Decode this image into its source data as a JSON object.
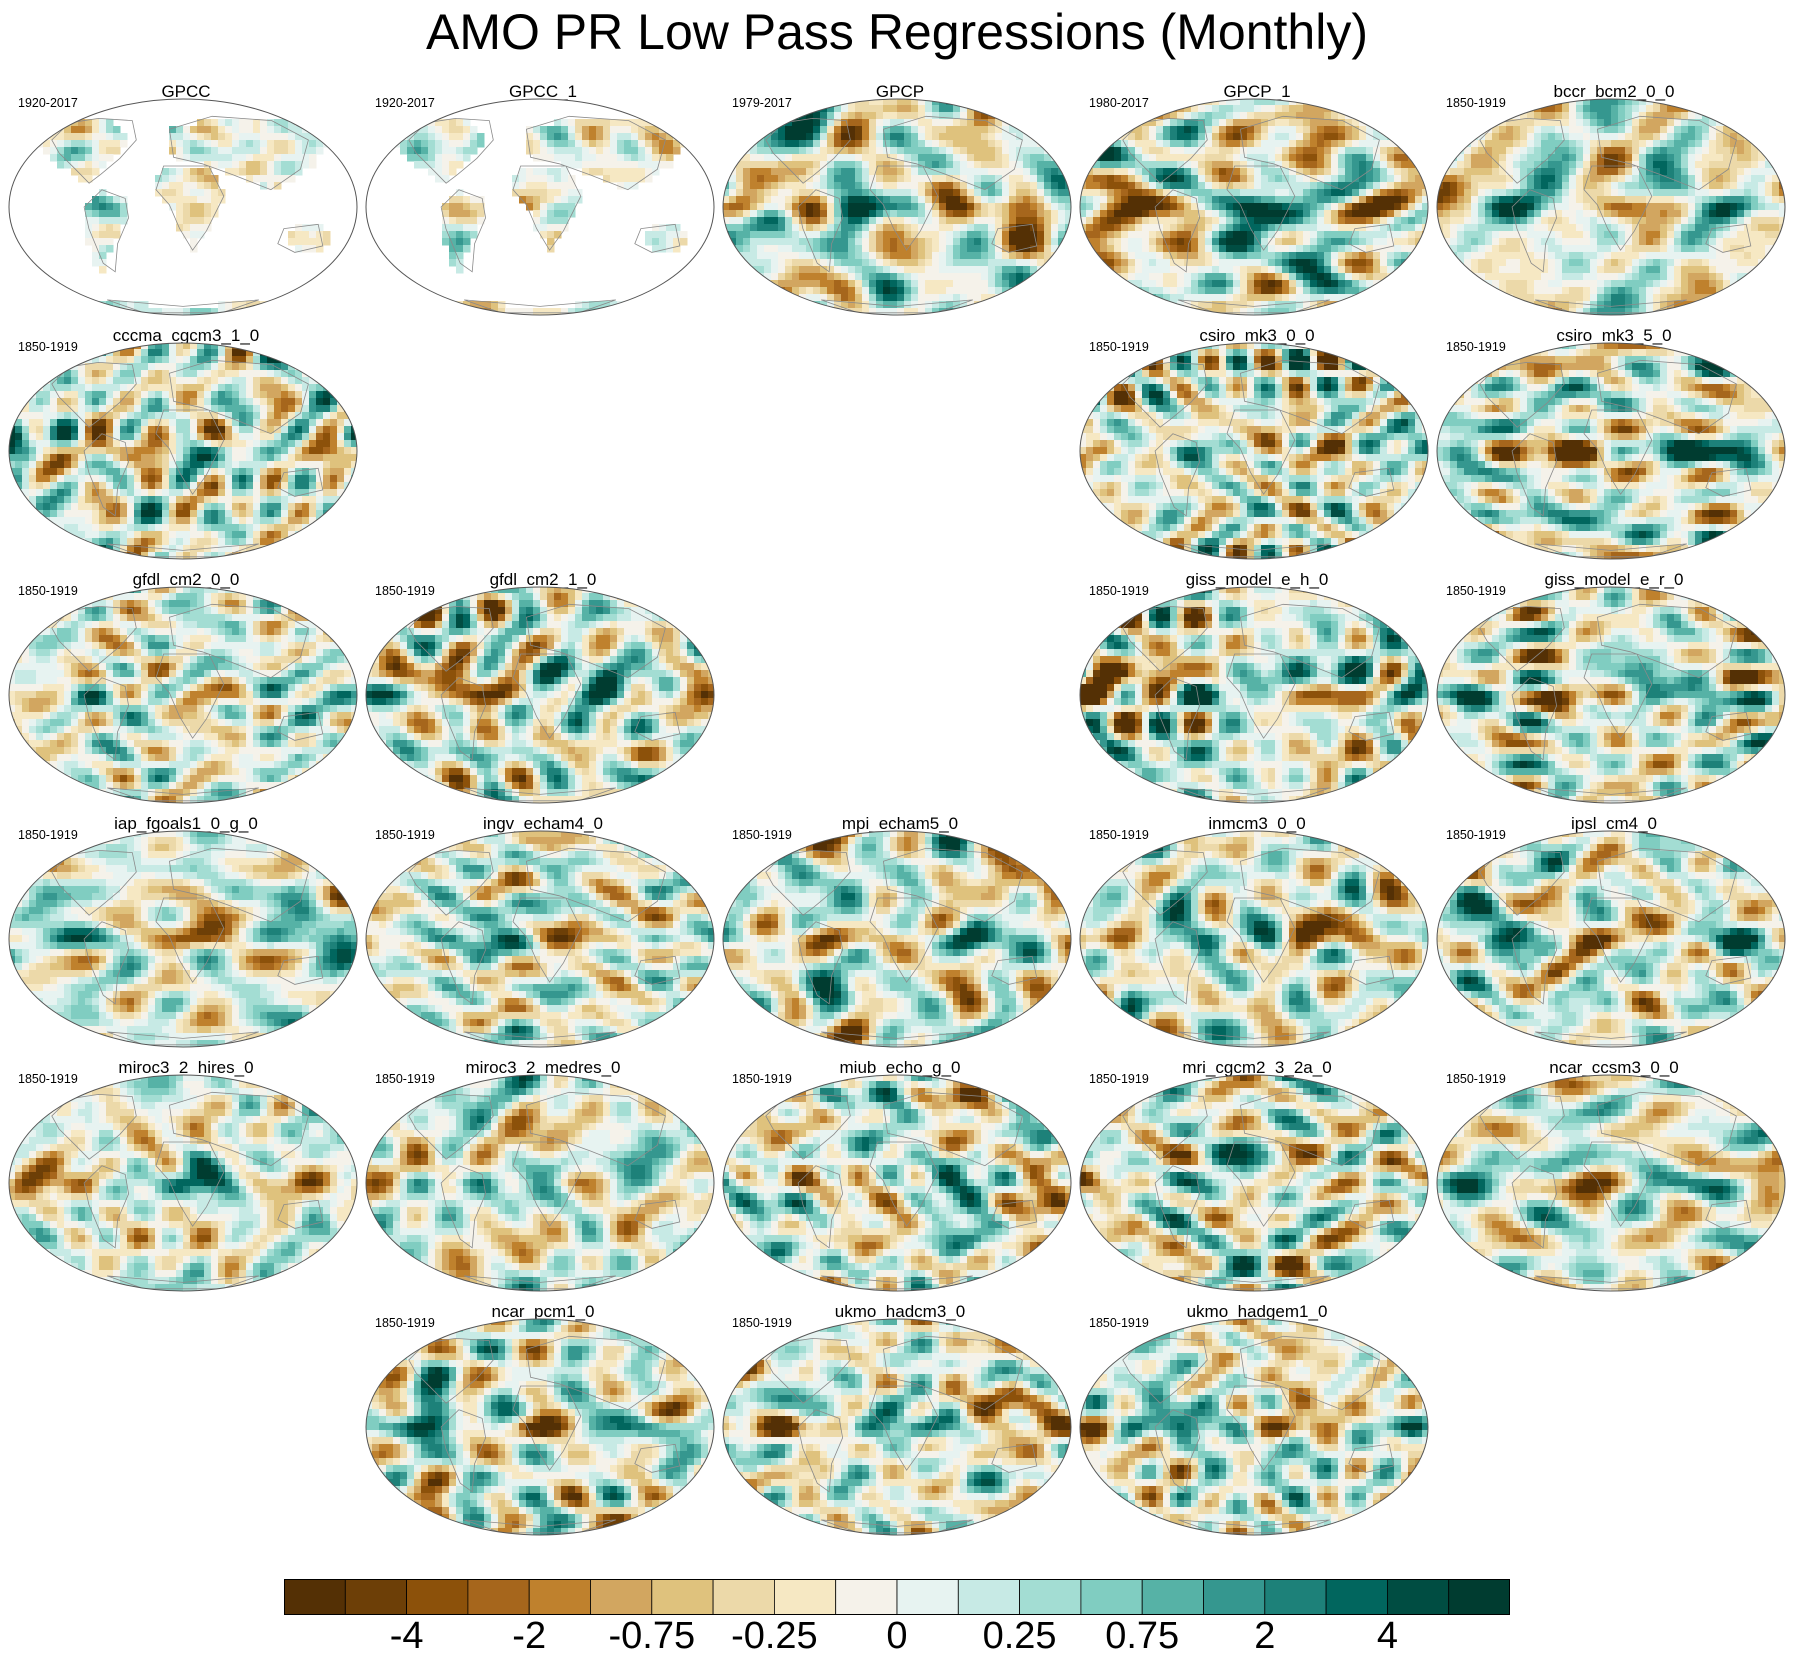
{
  "title": "AMO PR Low Pass Regressions (Monthly)",
  "panels": [
    {
      "name": "GPCC",
      "years": "1920-2017",
      "row": 0,
      "col": 0,
      "land_only": true,
      "seed": 11
    },
    {
      "name": "GPCC_1",
      "years": "1920-2017",
      "row": 0,
      "col": 1,
      "land_only": true,
      "seed": 12
    },
    {
      "name": "GPCP",
      "years": "1979-2017",
      "row": 0,
      "col": 2,
      "land_only": false,
      "seed": 13
    },
    {
      "name": "GPCP_1",
      "years": "1980-2017",
      "row": 0,
      "col": 3,
      "land_only": false,
      "seed": 14
    },
    {
      "name": "bccr_bcm2_0_0",
      "years": "1850-1919",
      "row": 0,
      "col": 4,
      "land_only": false,
      "seed": 15
    },
    {
      "name": "cccma_cgcm3_1_0",
      "years": "1850-1919",
      "row": 1,
      "col": 0,
      "land_only": false,
      "seed": 21
    },
    {
      "name": "csiro_mk3_0_0",
      "years": "1850-1919",
      "row": 1,
      "col": 3,
      "land_only": false,
      "seed": 22
    },
    {
      "name": "csiro_mk3_5_0",
      "years": "1850-1919",
      "row": 1,
      "col": 4,
      "land_only": false,
      "seed": 23
    },
    {
      "name": "gfdl_cm2_0_0",
      "years": "1850-1919",
      "row": 2,
      "col": 0,
      "land_only": false,
      "seed": 31
    },
    {
      "name": "gfdl_cm2_1_0",
      "years": "1850-1919",
      "row": 2,
      "col": 1,
      "land_only": false,
      "seed": 32
    },
    {
      "name": "giss_model_e_h_0",
      "years": "1850-1919",
      "row": 2,
      "col": 3,
      "land_only": false,
      "seed": 33
    },
    {
      "name": "giss_model_e_r_0",
      "years": "1850-1919",
      "row": 2,
      "col": 4,
      "land_only": false,
      "seed": 34
    },
    {
      "name": "iap_fgoals1_0_g_0",
      "years": "1850-1919",
      "row": 3,
      "col": 0,
      "land_only": false,
      "seed": 41
    },
    {
      "name": "ingv_echam4_0",
      "years": "1850-1919",
      "row": 3,
      "col": 1,
      "land_only": false,
      "seed": 42
    },
    {
      "name": "mpi_echam5_0",
      "years": "1850-1919",
      "row": 3,
      "col": 2,
      "land_only": false,
      "seed": 43
    },
    {
      "name": "inmcm3_0_0",
      "years": "1850-1919",
      "row": 3,
      "col": 3,
      "land_only": false,
      "seed": 44
    },
    {
      "name": "ipsl_cm4_0",
      "years": "1850-1919",
      "row": 3,
      "col": 4,
      "land_only": false,
      "seed": 45
    },
    {
      "name": "miroc3_2_hires_0",
      "years": "1850-1919",
      "row": 4,
      "col": 0,
      "land_only": false,
      "seed": 51
    },
    {
      "name": "miroc3_2_medres_0",
      "years": "1850-1919",
      "row": 4,
      "col": 1,
      "land_only": false,
      "seed": 52
    },
    {
      "name": "miub_echo_g_0",
      "years": "1850-1919",
      "row": 4,
      "col": 2,
      "land_only": false,
      "seed": 53
    },
    {
      "name": "mri_cgcm2_3_2a_0",
      "years": "1850-1919",
      "row": 4,
      "col": 3,
      "land_only": false,
      "seed": 54
    },
    {
      "name": "ncar_ccsm3_0_0",
      "years": "1850-1919",
      "row": 4,
      "col": 4,
      "land_only": false,
      "seed": 55
    },
    {
      "name": "ncar_pcm1_0",
      "years": "1850-1919",
      "row": 5,
      "col": 1,
      "land_only": false,
      "seed": 61
    },
    {
      "name": "ukmo_hadcm3_0",
      "years": "1850-1919",
      "row": 5,
      "col": 2,
      "land_only": false,
      "seed": 62
    },
    {
      "name": "ukmo_hadgem1_0",
      "years": "1850-1919",
      "row": 5,
      "col": 3,
      "land_only": false,
      "seed": 63
    }
  ],
  "colorbar": {
    "colors": [
      "#543005",
      "#6d3f07",
      "#8c510a",
      "#a6661c",
      "#bf812d",
      "#d2a660",
      "#dfc27d",
      "#ecd9a9",
      "#f6e8c3",
      "#f5f2ea",
      "#e7f3f1",
      "#c7eae5",
      "#a3ddd3",
      "#80cdc1",
      "#56b2a6",
      "#35978f",
      "#1d8179",
      "#01665e",
      "#004d42",
      "#003c30"
    ],
    "tick_labels": [
      "-4",
      "-2",
      "-0.75",
      "-0.25",
      "0",
      "0.25",
      "0.75",
      "2",
      "4"
    ],
    "tick_boundary_index": [
      2,
      4,
      6,
      8,
      10,
      12,
      14,
      16,
      18
    ]
  }
}
